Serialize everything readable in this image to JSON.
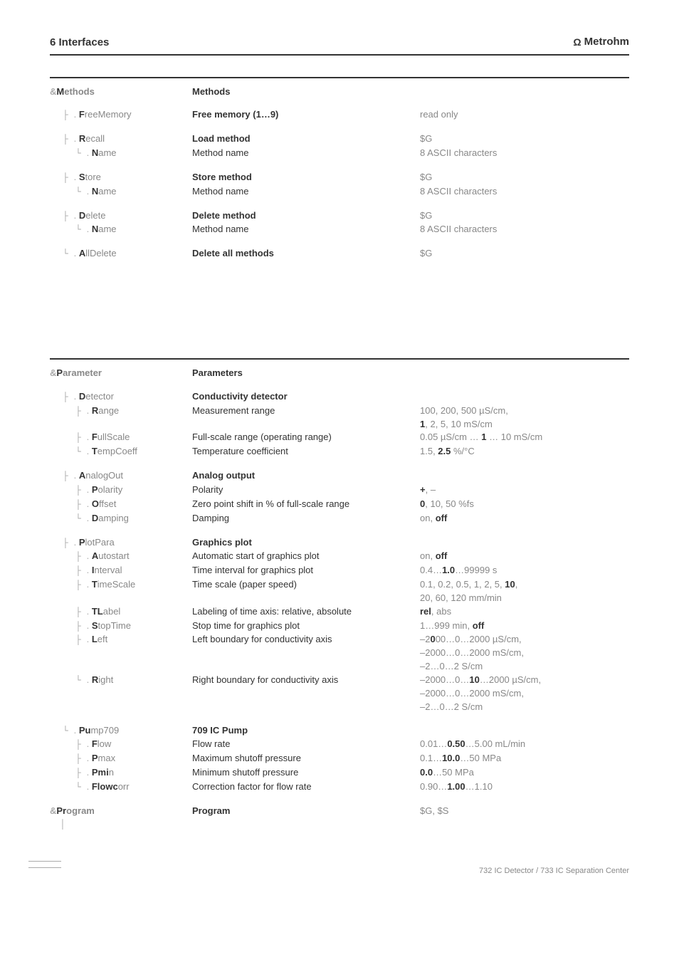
{
  "header": {
    "left": "6  Interfaces",
    "brand": "Metrohm"
  },
  "methods": {
    "top": {
      "c1": "&Methods",
      "c2": "Methods"
    },
    "items": [
      {
        "c1": ". FreeMemory",
        "c2": "Free memory (1…9)",
        "c3": "read only",
        "lvl": 1,
        "bold2": true,
        "tree": "├"
      },
      {
        "gap": true
      },
      {
        "c1": ". Recall",
        "c2": "Load method",
        "c3": "$G",
        "lvl": 1,
        "bold2": true,
        "tree": "├"
      },
      {
        "c1": ". Name",
        "c2": "Method name",
        "c3": "8 ASCII characters",
        "lvl": 2,
        "tree": "└"
      },
      {
        "gap": true
      },
      {
        "c1": ". Store",
        "c2": "Store method",
        "c3": "$G",
        "lvl": 1,
        "bold2": true,
        "tree": "├"
      },
      {
        "c1": ". Name",
        "c2": "Method name",
        "c3": "8 ASCII characters",
        "lvl": 2,
        "tree": "└"
      },
      {
        "gap": true
      },
      {
        "c1": ". Delete",
        "c2": "Delete method",
        "c3": "$G",
        "lvl": 1,
        "bold2": true,
        "tree": "├"
      },
      {
        "c1": ". Name",
        "c2": "Method name",
        "c3": "8 ASCII characters",
        "lvl": 2,
        "tree": "└"
      },
      {
        "gap": true
      },
      {
        "c1": ". AllDelete",
        "c2": "Delete all methods",
        "c3": "$G",
        "lvl": 1,
        "bold2": true,
        "tree": "└"
      }
    ]
  },
  "parameters": {
    "top": {
      "c1": "&Parameter",
      "c2": "Parameters"
    },
    "items": [
      {
        "c1": ". Detector",
        "c2": "Conductivity detector",
        "lvl": 1,
        "bold2": true,
        "tree": "├"
      },
      {
        "c1": ". Range",
        "c2": "Measurement range",
        "c3a": "100, 200, 500 µS/cm,",
        "c3b": "1, 2, 5, 10 mS/cm",
        "lvl": 2,
        "tree": "├",
        "boldc3b_first": "1"
      },
      {
        "c1": ". FullScale",
        "c2": "Full-scale range (operating range)",
        "c3": "0.05 µS/cm … 1 … 10 mS/cm",
        "lvl": 2,
        "tree": "├",
        "boldpart": "1"
      },
      {
        "c1": ". TempCoeff",
        "c2": "Temperature coefficient",
        "c3": "1.5, 2.5 %/°C",
        "lvl": 2,
        "tree": "└",
        "boldpart": "2.5"
      },
      {
        "gap": true
      },
      {
        "c1": ". AnalogOut",
        "c2": "Analog output",
        "lvl": 1,
        "bold2": true,
        "tree": "├"
      },
      {
        "c1": ". Polarity",
        "c2": "Polarity",
        "c3": "+, –",
        "lvl": 2,
        "tree": "├",
        "boldpart": "+"
      },
      {
        "c1": ". Offset",
        "c2": "Zero point shift in % of full-scale range",
        "c3": "0, 10, 50 %fs",
        "lvl": 2,
        "tree": "├",
        "boldpart": "0"
      },
      {
        "c1": ". Damping",
        "c2": "Damping",
        "c3": "on, off",
        "lvl": 2,
        "tree": "└",
        "boldpart": "off"
      },
      {
        "gap": true
      },
      {
        "c1": ". PlotPara",
        "c2": "Graphics plot",
        "lvl": 1,
        "bold2": true,
        "tree": "├"
      },
      {
        "c1": ". Autostart",
        "c2": "Automatic start of graphics plot",
        "c3": "on, off",
        "lvl": 2,
        "tree": "├",
        "boldpart": "off"
      },
      {
        "c1": ". Interval",
        "c2": "Time interval for graphics plot",
        "c3": "0.4…1.0…99999 s",
        "lvl": 2,
        "tree": "├",
        "boldpart": "1.0"
      },
      {
        "c1": ". TimeScale",
        "c2": "Time scale (paper speed)",
        "c3a": "0.1, 0.2, 0.5, 1, 2, 5, 10,",
        "c3b": "20, 60, 120 mm/min",
        "lvl": 2,
        "tree": "├",
        "boldc3a_last": "10"
      },
      {
        "c1": ". TLabel",
        "c2": "Labeling of time axis: relative, absolute",
        "c3": "rel, abs",
        "lvl": 2,
        "tree": "├",
        "boldpart": "rel"
      },
      {
        "c1": ". StopTime",
        "c2": "Stop time for graphics plot",
        "c3": "1…999 min, off",
        "lvl": 2,
        "tree": "├",
        "boldpart": "off"
      },
      {
        "c1": ". Left",
        "c2": "Left boundary for conductivity axis",
        "c3lines": [
          "–2000…0…2000 µS/cm,",
          "–2000…0…2000 mS/cm,",
          "–2…0…2 S/cm"
        ],
        "lvl": 2,
        "tree": "├",
        "boldline0": "0"
      },
      {
        "c1": ". Right",
        "c2": "Right boundary for conductivity axis",
        "c3lines": [
          "–2000…0…10…2000 µS/cm,",
          "–2000…0…2000 mS/cm,",
          "–2…0…2 S/cm"
        ],
        "lvl": 2,
        "tree": "└",
        "boldline0": "10"
      },
      {
        "gap": true
      },
      {
        "c1": ". Pump709",
        "c2": "709 IC Pump",
        "lvl": 1,
        "bold2": true,
        "tree": "└"
      },
      {
        "c1": ". Flow",
        "c2": "Flow rate",
        "c3": "0.01…0.50…5.00 mL/min",
        "lvl": 2,
        "tree": "├",
        "boldpart": "0.50"
      },
      {
        "c1": ". Pmax",
        "c2": "Maximum shutoff pressure",
        "c3": "0.1…10.0…50 MPa",
        "lvl": 2,
        "tree": "├",
        "boldpart": "10.0"
      },
      {
        "c1": ". Pmin",
        "c2": "Minimum shutoff pressure",
        "c3": "0.0…50 MPa",
        "lvl": 2,
        "tree": "├",
        "boldpart": "0.0"
      },
      {
        "c1": ". Flowcorr",
        "c2": "Correction factor for flow rate",
        "c3": "0.90…1.00…1.10",
        "lvl": 2,
        "tree": "└",
        "boldpart": "1.00"
      }
    ]
  },
  "program": {
    "top": {
      "c1": "&Program",
      "c2": "Program",
      "c3": "$G, $S"
    }
  },
  "footer": "732 IC Detector / 733 IC Separation Center"
}
